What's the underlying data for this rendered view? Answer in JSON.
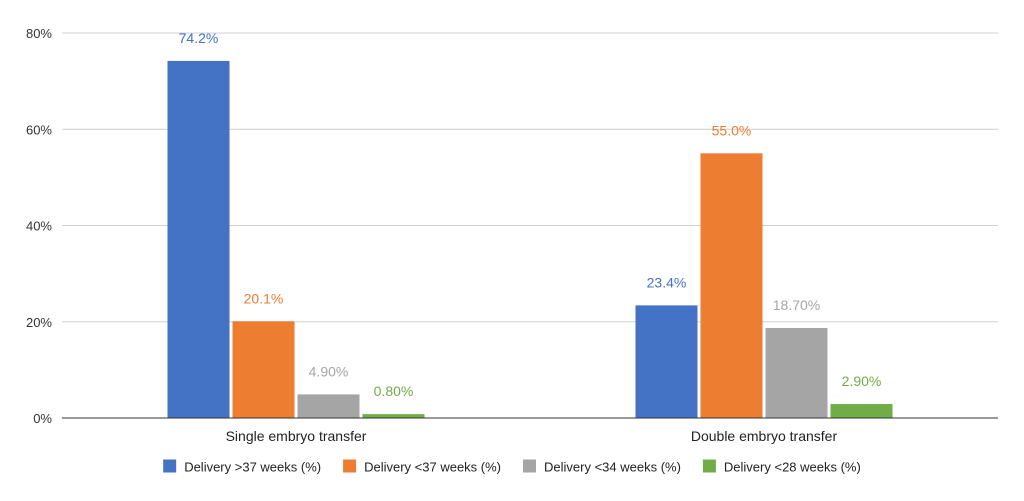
{
  "chart_data": {
    "type": "bar",
    "categories": [
      "Single embryo transfer",
      "Double embryo transfer"
    ],
    "series": [
      {
        "name": "Delivery >37 weeks (%)",
        "values": [
          74.2,
          23.4
        ],
        "labels": [
          "74.2%",
          "23.4%"
        ],
        "color": "#4472C4"
      },
      {
        "name": "Delivery <37 weeks (%)",
        "values": [
          20.1,
          55.0
        ],
        "labels": [
          "20.1%",
          "55.0%"
        ],
        "color": "#ED7D31"
      },
      {
        "name": "Delivery <34 weeks (%)",
        "values": [
          4.9,
          18.7
        ],
        "labels": [
          "4.90%",
          "18.70%"
        ],
        "color": "#A5A5A5"
      },
      {
        "name": "Delivery <28 weeks (%)",
        "values": [
          0.8,
          2.9
        ],
        "labels": [
          "0.80%",
          "2.90%"
        ],
        "color": "#70AD47"
      }
    ],
    "ylim": [
      0,
      80
    ],
    "yticks": [
      {
        "value": 0,
        "label": "0%"
      },
      {
        "value": 20,
        "label": "20%"
      },
      {
        "value": 40,
        "label": "40%"
      },
      {
        "value": 60,
        "label": "60%"
      },
      {
        "value": 80,
        "label": "80%"
      }
    ],
    "grid": true,
    "legend_position": "bottom"
  }
}
